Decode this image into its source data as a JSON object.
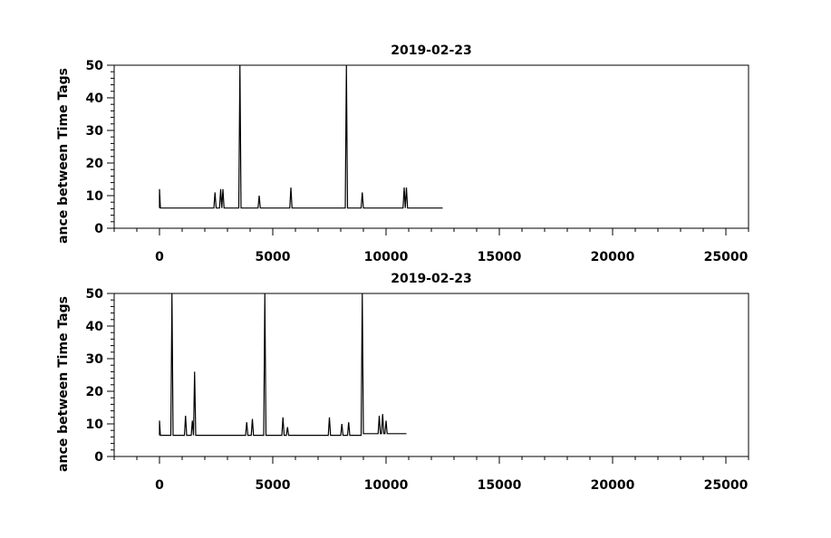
{
  "chart_data": [
    {
      "type": "line",
      "title": "2019-02-23",
      "ylabel": "ance between Time Tags",
      "xlim": [
        -2000,
        26000
      ],
      "xticks": [
        0,
        5000,
        10000,
        15000,
        20000,
        25000
      ],
      "ylim": [
        0,
        50
      ],
      "yticks": [
        0,
        10,
        20,
        30,
        40,
        50
      ],
      "x": [
        0,
        0,
        40,
        2400,
        2450,
        2500,
        2650,
        2700,
        2750,
        2800,
        2850,
        3500,
        3550,
        3600,
        4350,
        4400,
        4450,
        5750,
        5800,
        5850,
        8200,
        8250,
        8300,
        8900,
        8950,
        9000,
        10750,
        10800,
        10850,
        10900,
        10950,
        12500
      ],
      "series": [
        {
          "color": "#000000",
          "values": [
            6.2,
            12,
            6.2,
            6.2,
            11,
            6.2,
            6.2,
            12,
            6.2,
            12,
            6.2,
            6.2,
            50,
            6.2,
            6.2,
            10,
            6.2,
            6.2,
            12.5,
            6.2,
            6.2,
            50,
            6.2,
            6.2,
            11,
            6.2,
            6.2,
            12.5,
            6.2,
            12.5,
            6.2,
            6.2
          ]
        }
      ]
    },
    {
      "type": "line",
      "title": "2019-02-23",
      "ylabel": "ance between Time Tags",
      "xlim": [
        -2000,
        26000
      ],
      "xticks": [
        0,
        5000,
        10000,
        15000,
        20000,
        25000
      ],
      "ylim": [
        0,
        50
      ],
      "yticks": [
        0,
        10,
        20,
        30,
        40,
        50
      ],
      "x": [
        0,
        0,
        40,
        500,
        550,
        600,
        1100,
        1150,
        1200,
        1400,
        1450,
        1500,
        1550,
        1600,
        3800,
        3850,
        3900,
        4050,
        4100,
        4150,
        4600,
        4650,
        4700,
        5400,
        5450,
        5500,
        5600,
        5650,
        5700,
        7450,
        7500,
        7550,
        8000,
        8050,
        8100,
        8300,
        8350,
        8400,
        8900,
        8950,
        9000,
        9650,
        9700,
        9750,
        9800,
        9850,
        9900,
        9950,
        10000,
        10050,
        10900
      ],
      "series": [
        {
          "color": "#000000",
          "values": [
            6.5,
            11,
            6.5,
            6.5,
            50,
            6.5,
            6.5,
            12.5,
            6.5,
            6.5,
            11,
            6.5,
            26,
            6.5,
            6.5,
            10.5,
            6.5,
            6.5,
            11.5,
            6.5,
            6.5,
            50,
            6.5,
            6.5,
            12,
            6.5,
            6.5,
            9,
            6.5,
            6.5,
            12,
            6.5,
            6.5,
            10,
            6.5,
            6.5,
            10.5,
            6.5,
            6.5,
            50,
            7,
            7,
            12.5,
            7,
            7,
            13,
            7,
            7,
            11,
            7,
            7
          ]
        }
      ]
    }
  ]
}
